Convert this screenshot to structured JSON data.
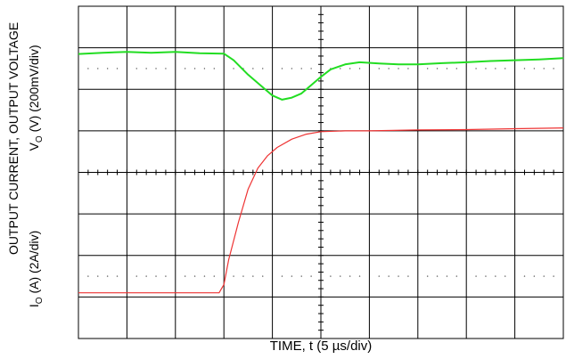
{
  "chart_data": {
    "type": "line",
    "title": "",
    "xlabel": "TIME, t (5 µs/div)",
    "ylabel_outer": "OUTPUT CURRENT,  OUTPUT VOLTAGE",
    "ylabel_upper_prefix": "V",
    "ylabel_upper_sub": "O",
    "ylabel_upper_rest": " (V) (200mV/div)",
    "ylabel_lower_prefix": "I",
    "ylabel_lower_sub": "O",
    "ylabel_lower_rest": " (A) (2A/div)",
    "grid": true,
    "x_divisions": 10,
    "y_divisions": 8,
    "series": [
      {
        "color": "#22dd22",
        "x": [
          0,
          0.5,
          1,
          1.5,
          2,
          2.5,
          3,
          3.2,
          3.5,
          3.8,
          4.0,
          4.2,
          4.4,
          4.6,
          4.8,
          5.0,
          5.2,
          5.5,
          5.8,
          6.2,
          6.6,
          7,
          7.5,
          8,
          8.5,
          9,
          9.5,
          10
        ],
        "y": [
          6.85,
          6.88,
          6.9,
          6.88,
          6.9,
          6.87,
          6.86,
          6.7,
          6.35,
          6.05,
          5.85,
          5.75,
          5.8,
          5.9,
          6.1,
          6.3,
          6.48,
          6.6,
          6.65,
          6.62,
          6.6,
          6.6,
          6.63,
          6.65,
          6.68,
          6.7,
          6.72,
          6.75
        ]
      },
      {
        "color": "#ee3333",
        "x": [
          0,
          1,
          2,
          2.9,
          3.0,
          3.1,
          3.3,
          3.5,
          3.7,
          3.9,
          4.1,
          4.4,
          4.7,
          5.0,
          5.5,
          6,
          7,
          8,
          9,
          10
        ],
        "y": [
          1.1,
          1.1,
          1.1,
          1.1,
          1.3,
          1.9,
          2.8,
          3.6,
          4.1,
          4.4,
          4.6,
          4.8,
          4.92,
          4.98,
          5.0,
          5.0,
          5.02,
          5.03,
          5.05,
          5.07
        ]
      }
    ]
  }
}
